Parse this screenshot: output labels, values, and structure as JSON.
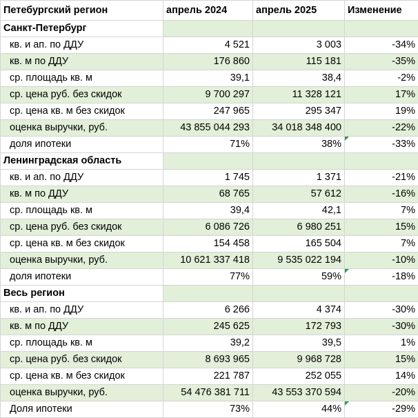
{
  "header": {
    "col1": "Петебургский регион",
    "col2": "апрель 2024",
    "col3": "апрель 2025",
    "col4": "Изменение"
  },
  "sections": [
    {
      "title": "Санкт-Петербург",
      "rows": [
        {
          "label": "кв. и ап. по ДДУ",
          "v2024": "4 521",
          "v2025": "3 003",
          "change": "-34%"
        },
        {
          "label": "кв. м по ДДУ",
          "v2024": "176 860",
          "v2025": "115 181",
          "change": "-35%"
        },
        {
          "label": "ср. площадь кв. м",
          "v2024": "39,1",
          "v2025": "38,4",
          "change": "-2%"
        },
        {
          "label": "ср. цена руб. без скидок",
          "v2024": "9 700 297",
          "v2025": "11 328 121",
          "change": "17%"
        },
        {
          "label": "ср. цена кв. м без скидок",
          "v2024": "247 965",
          "v2025": "295 347",
          "change": "19%"
        },
        {
          "label": "оценка выручки, руб.",
          "v2024": "43 855 044 293",
          "v2025": "34 018 348 400",
          "change": "-22%"
        },
        {
          "label": "доля ипотеки",
          "v2024": "71%",
          "v2025": "38%",
          "change": "-33%"
        }
      ]
    },
    {
      "title": "Ленинградская область",
      "rows": [
        {
          "label": "кв. и ап. по ДДУ",
          "v2024": "1 745",
          "v2025": "1 371",
          "change": "-21%"
        },
        {
          "label": "кв. м по ДДУ",
          "v2024": "68 765",
          "v2025": "57 612",
          "change": "-16%"
        },
        {
          "label": "ср. площадь кв. м",
          "v2024": "39,4",
          "v2025": "42,1",
          "change": "7%"
        },
        {
          "label": "ср. цена руб. без скидок",
          "v2024": "6 086 726",
          "v2025": "6 980 251",
          "change": "15%"
        },
        {
          "label": "ср. цена кв. м без скидок",
          "v2024": "154 458",
          "v2025": "165 504",
          "change": "7%"
        },
        {
          "label": "оценка выручки, руб.",
          "v2024": "10 621 337 418",
          "v2025": "9 535 022 194",
          "change": "-10%"
        },
        {
          "label": "доля ипотеки",
          "v2024": "77%",
          "v2025": "59%",
          "change": "-18%"
        }
      ]
    },
    {
      "title": "Весь регион",
      "rows": [
        {
          "label": "кв. и ап. по ДДУ",
          "v2024": "6 266",
          "v2025": "4 374",
          "change": "-30%"
        },
        {
          "label": "кв. м по ДДУ",
          "v2024": "245 625",
          "v2025": "172 793",
          "change": "-30%"
        },
        {
          "label": "ср. площадь кв. м",
          "v2024": "39,2",
          "v2025": "39,5",
          "change": "1%"
        },
        {
          "label": "ср. цена руб. без скидок",
          "v2024": "8 693 965",
          "v2025": "9 968 728",
          "change": "15%"
        },
        {
          "label": "ср. цена кв. м без скидок",
          "v2024": "221 787",
          "v2025": "252 055",
          "change": "14%"
        },
        {
          "label": "оценка выручки, руб.",
          "v2024": "54 476 381 711",
          "v2025": "43 553 370 594",
          "change": "-20%"
        },
        {
          "label": "Доля ипотеки",
          "v2024": "73%",
          "v2025": "44%",
          "change": "-29%"
        }
      ]
    }
  ],
  "colors": {
    "row_shade": "#e2efd9",
    "grid_line": "#d4d4d4",
    "cell_marker": "#2e9a4a"
  }
}
